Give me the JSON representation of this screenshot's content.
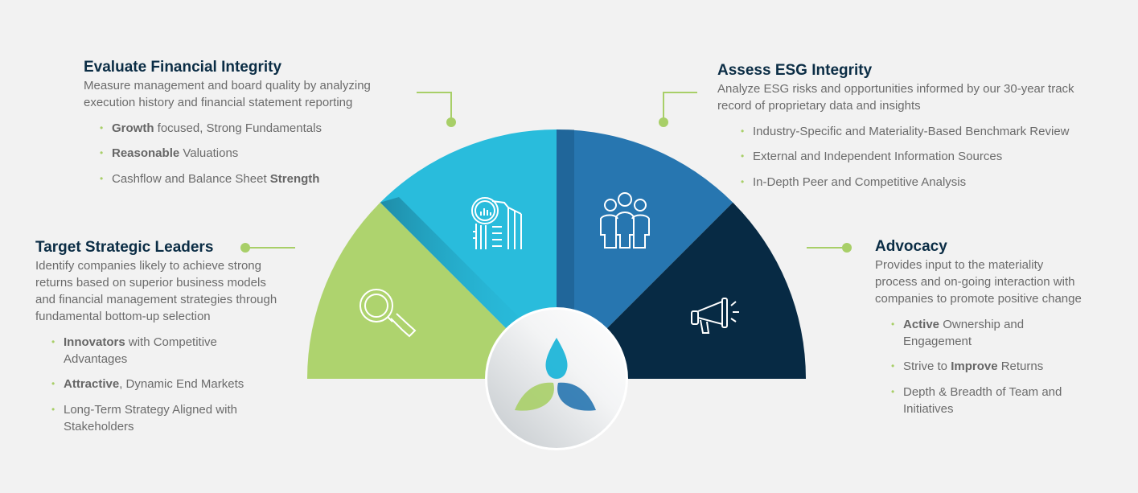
{
  "colors": {
    "green": "#aed36e",
    "cyan": "#29bcdc",
    "blue": "#2776b0",
    "navy": "#072a44",
    "title": "#0b2d45",
    "connector": "#a8cf68"
  },
  "sections": {
    "financial": {
      "title": "Evaluate Financial Integrity",
      "desc": [
        "Measure management and board quality by analyzing",
        "execution history and financial statement reporting"
      ],
      "bullets": [
        [
          {
            "b": "Growth"
          },
          {
            "t": " focused, Strong Fundamentals"
          }
        ],
        [
          {
            "b": "Reasonable"
          },
          {
            "t": " Valuations"
          }
        ],
        [
          {
            "t": "Cashflow and Balance Sheet "
          },
          {
            "b": "Strength"
          }
        ]
      ],
      "icon": "building-magnifier-chart-icon"
    },
    "esg": {
      "title": "Assess ESG Integrity",
      "desc": [
        "Analyze ESG risks and opportunities informed by our 30-year track",
        "record of proprietary data and insights"
      ],
      "bullets": [
        [
          {
            "t": "Industry-Specific and Materiality-Based Benchmark Review"
          }
        ],
        [
          {
            "t": "External and Independent Information Sources"
          }
        ],
        [
          {
            "t": "In-Depth Peer and Competitive Analysis"
          }
        ]
      ],
      "icon": "people-group-icon"
    },
    "leaders": {
      "title": "Target Strategic Leaders",
      "desc": [
        "Identify companies likely to achieve strong",
        "returns based on superior business models",
        "and financial management strategies through",
        "fundamental bottom-up selection"
      ],
      "bullets": [
        [
          {
            "b": "Innovators"
          },
          {
            "t": " with Competitive Advantages"
          }
        ],
        [
          {
            "b": "Attractive"
          },
          {
            "t": ", Dynamic End Markets"
          }
        ],
        [
          {
            "t": "Long-Term Strategy Aligned with Stakeholders"
          }
        ]
      ],
      "icon": "magnifying-glass-icon"
    },
    "advocacy": {
      "title": "Advocacy",
      "desc": [
        "Provides input to the materiality",
        "process and on-going interaction with",
        "companies to promote positive change"
      ],
      "bullets": [
        [
          {
            "b": "Active"
          },
          {
            "t": " Ownership and Engagement"
          }
        ],
        [
          {
            "t": "Strive to "
          },
          {
            "b": "Improve"
          },
          {
            "t": " Returns"
          }
        ],
        [
          {
            "t": "Depth & Breadth of Team and Initiatives"
          }
        ]
      ],
      "icon": "megaphone-icon"
    }
  },
  "center_logo": "three-leaf-logo"
}
